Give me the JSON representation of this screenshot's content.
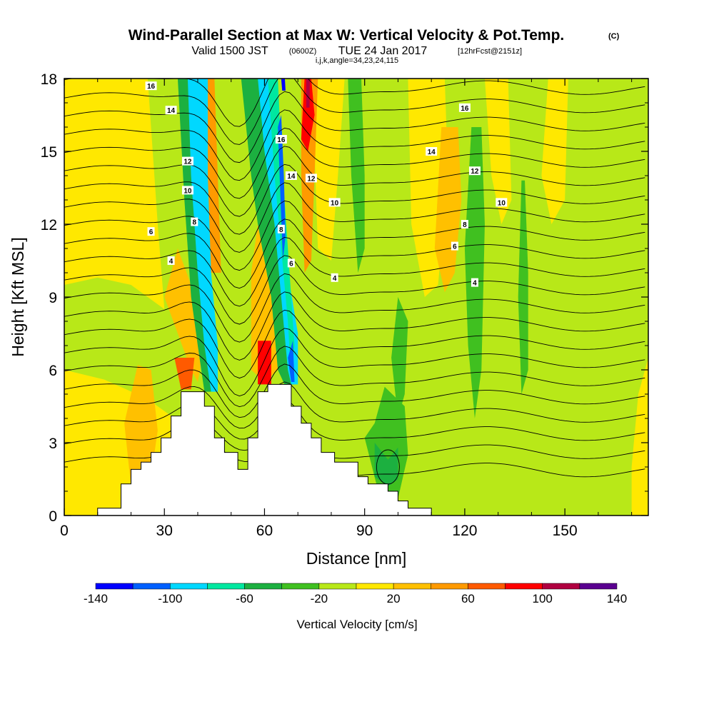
{
  "title": {
    "main": "Wind-Parallel Section at Max W: Vertical Velocity & Pot.Temp.",
    "copyright": "(C)",
    "valid_prefix": "Valid 1500 JST",
    "valid_utc": "(0600Z)",
    "valid_date": "TUE 24 Jan 2017",
    "forecast": "[12hrFcst@2151z]",
    "indices": "i,j,k,angle=34,23,24,115"
  },
  "chart_data": {
    "type": "heatmap",
    "xlabel": "Distance [nm]",
    "ylabel": "Height [Kft MSL]",
    "xlim": [
      0,
      175
    ],
    "ylim": [
      0,
      18
    ],
    "xticks": [
      0,
      30,
      60,
      90,
      120,
      150
    ],
    "yticks": [
      0,
      3,
      6,
      9,
      12,
      15,
      18
    ],
    "colorbar": {
      "title": "Vertical Velocity [cm/s]",
      "range": [
        -140,
        140
      ],
      "step": 20,
      "tick_labels": [
        "-140",
        "-100",
        "-60",
        "-20",
        "20",
        "60",
        "100",
        "140"
      ],
      "colors": [
        "#0000ff",
        "#0060ff",
        "#00d8ff",
        "#00e8a0",
        "#1cb040",
        "#40c020",
        "#b8e818",
        "#ffe800",
        "#ffc000",
        "#ff9a00",
        "#ff5a00",
        "#ff0000",
        "#b00040",
        "#5a0090"
      ]
    },
    "terrain": {
      "x": [
        10,
        10,
        17,
        17,
        20,
        20,
        23,
        23,
        26,
        26,
        29,
        29,
        32,
        32,
        35,
        35,
        42,
        42,
        45,
        45,
        48,
        48,
        52,
        52,
        55,
        55,
        58,
        58,
        61,
        61,
        64,
        64,
        68,
        68,
        71,
        71,
        74,
        74,
        77,
        77,
        81,
        81,
        88,
        88,
        91,
        91,
        97,
        97,
        100,
        100,
        103,
        103,
        110
      ],
      "y": [
        0,
        0.3,
        0.3,
        1.3,
        1.3,
        1.9,
        1.9,
        2.2,
        2.2,
        2.6,
        2.6,
        3.2,
        3.2,
        4.1,
        4.1,
        5.1,
        5.1,
        4.5,
        4.5,
        3.2,
        3.2,
        2.6,
        2.6,
        1.9,
        1.9,
        3.2,
        3.2,
        5.1,
        5.1,
        5.4,
        5.4,
        5.4,
        5.4,
        4.5,
        4.5,
        3.8,
        3.8,
        3.2,
        3.2,
        2.6,
        2.6,
        2.2,
        2.2,
        1.6,
        1.6,
        1.3,
        1.3,
        1.0,
        1.0,
        0.6,
        0.6,
        0.3,
        0.3
      ]
    },
    "contour_labels": [
      {
        "text": "16",
        "x": 26,
        "y": 17.7
      },
      {
        "text": "14",
        "x": 32,
        "y": 16.7
      },
      {
        "text": "12",
        "x": 37,
        "y": 14.6
      },
      {
        "text": "10",
        "x": 37,
        "y": 13.4
      },
      {
        "text": "8",
        "x": 39,
        "y": 12.1
      },
      {
        "text": "6",
        "x": 26,
        "y": 11.7
      },
      {
        "text": "4",
        "x": 32,
        "y": 10.5
      },
      {
        "text": "16",
        "x": 65,
        "y": 15.5
      },
      {
        "text": "14",
        "x": 68,
        "y": 14
      },
      {
        "text": "12",
        "x": 74,
        "y": 13.9
      },
      {
        "text": "10",
        "x": 81,
        "y": 12.9
      },
      {
        "text": "8",
        "x": 65,
        "y": 11.8
      },
      {
        "text": "6",
        "x": 68,
        "y": 10.4
      },
      {
        "text": "4",
        "x": 81,
        "y": 9.8
      },
      {
        "text": "16",
        "x": 120,
        "y": 16.8
      },
      {
        "text": "14",
        "x": 110,
        "y": 15
      },
      {
        "text": "12",
        "x": 123,
        "y": 14.2
      },
      {
        "text": "10",
        "x": 131,
        "y": 12.9
      },
      {
        "text": "8",
        "x": 120,
        "y": 12
      },
      {
        "text": "6",
        "x": 117,
        "y": 11.1
      },
      {
        "text": "4",
        "x": 123,
        "y": 9.6
      }
    ],
    "grid": false
  }
}
